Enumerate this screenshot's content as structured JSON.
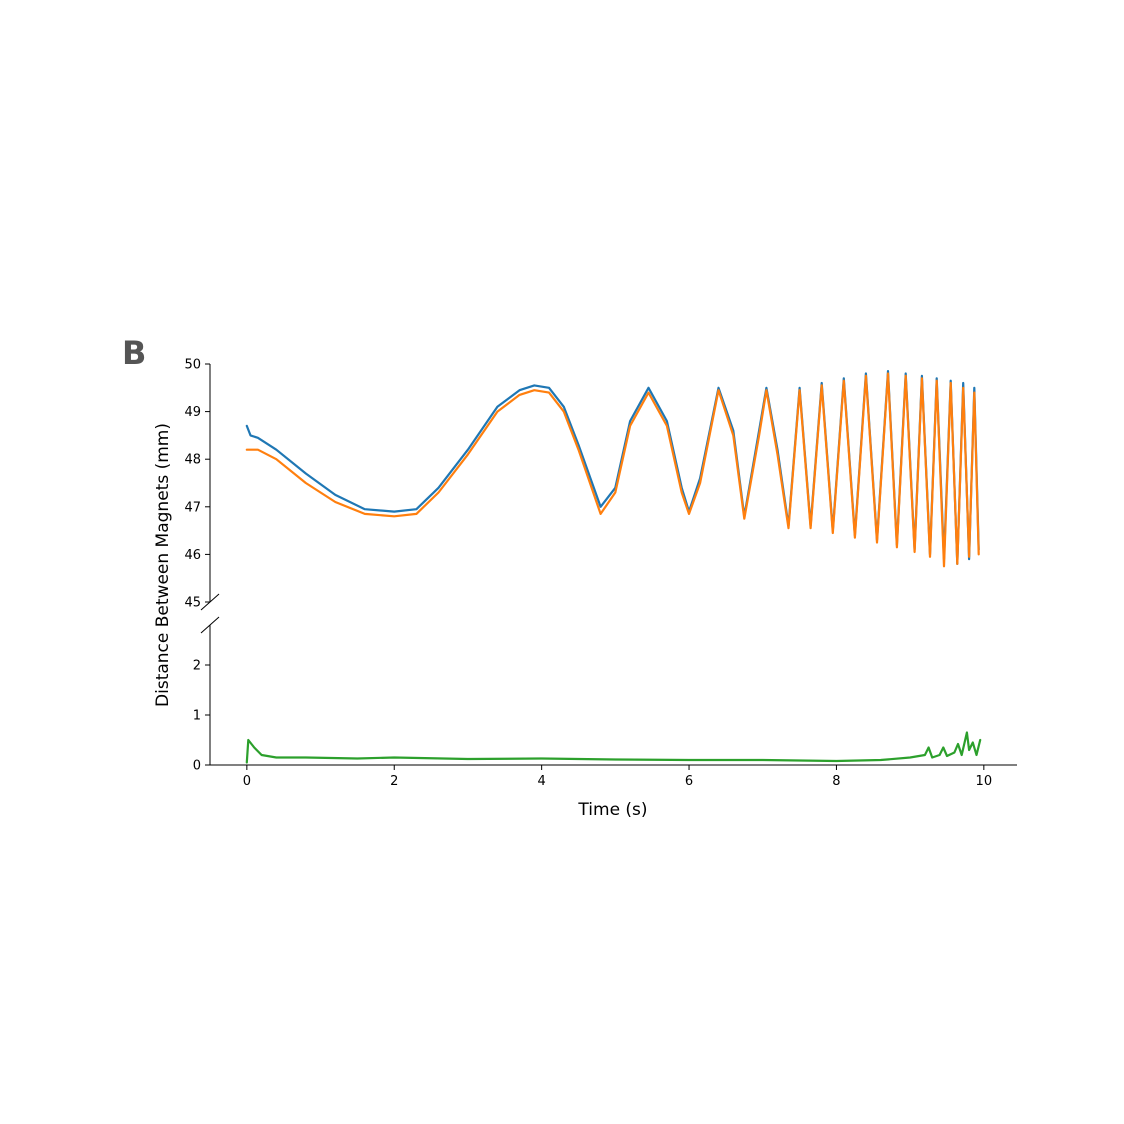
{
  "panel_label": "B",
  "chart_data": {
    "type": "line",
    "title": "",
    "xlabel": "Time (s)",
    "ylabel": "Distance Between Magnets (mm)",
    "xlim": [
      -0.5,
      10.45
    ],
    "x_ticks": [
      0,
      2,
      4,
      6,
      8,
      10
    ],
    "broken_y_axis": true,
    "upper_axis": {
      "ylim": [
        45,
        50
      ],
      "y_ticks": [
        45,
        46,
        47,
        48,
        49,
        50
      ]
    },
    "lower_axis": {
      "ylim": [
        0,
        2.8
      ],
      "y_ticks": [
        0,
        1,
        2
      ]
    },
    "grid": false,
    "legend": "none",
    "series": [
      {
        "color": "#1f77b4",
        "panel": "upper",
        "x": [
          0,
          0.05,
          0.15,
          0.4,
          0.8,
          1.2,
          1.6,
          2.0,
          2.3,
          2.6,
          3.0,
          3.4,
          3.7,
          3.9,
          4.1,
          4.3,
          4.5,
          4.8,
          5.0,
          5.2,
          5.45,
          5.7,
          5.9,
          6.0,
          6.15,
          6.4,
          6.6,
          6.75,
          6.95,
          7.05,
          7.2,
          7.35,
          7.5,
          7.65,
          7.8,
          7.95,
          8.1,
          8.25,
          8.4,
          8.55,
          8.7,
          8.82,
          8.94,
          9.06,
          9.16,
          9.27,
          9.36,
          9.46,
          9.55,
          9.64,
          9.72,
          9.8,
          9.87,
          9.93
        ],
        "values": [
          48.7,
          48.5,
          48.45,
          48.2,
          47.7,
          47.25,
          46.95,
          46.9,
          46.95,
          47.4,
          48.2,
          49.1,
          49.45,
          49.55,
          49.5,
          49.1,
          48.3,
          47.0,
          47.4,
          48.8,
          49.5,
          48.8,
          47.4,
          46.9,
          47.6,
          49.5,
          48.6,
          46.8,
          48.6,
          49.5,
          48.2,
          46.6,
          49.5,
          46.6,
          49.6,
          46.5,
          49.7,
          46.4,
          49.8,
          46.3,
          49.85,
          46.2,
          49.8,
          46.1,
          49.75,
          46.0,
          49.7,
          45.9,
          49.65,
          45.8,
          49.6,
          45.9,
          49.5,
          46.1
        ]
      },
      {
        "color": "#ff7f0e",
        "panel": "upper",
        "x": [
          0,
          0.05,
          0.15,
          0.4,
          0.8,
          1.2,
          1.6,
          2.0,
          2.3,
          2.6,
          3.0,
          3.4,
          3.7,
          3.9,
          4.1,
          4.3,
          4.5,
          4.8,
          5.0,
          5.2,
          5.45,
          5.7,
          5.9,
          6.0,
          6.15,
          6.4,
          6.6,
          6.75,
          6.95,
          7.05,
          7.2,
          7.35,
          7.5,
          7.65,
          7.8,
          7.95,
          8.1,
          8.25,
          8.4,
          8.55,
          8.7,
          8.82,
          8.94,
          9.06,
          9.16,
          9.27,
          9.36,
          9.46,
          9.55,
          9.64,
          9.72,
          9.8,
          9.87,
          9.93
        ],
        "values": [
          48.2,
          48.2,
          48.2,
          48.0,
          47.5,
          47.1,
          46.85,
          46.8,
          46.85,
          47.3,
          48.1,
          49.0,
          49.35,
          49.45,
          49.4,
          49.0,
          48.2,
          46.85,
          47.3,
          48.7,
          49.4,
          48.7,
          47.3,
          46.85,
          47.5,
          49.45,
          48.5,
          46.75,
          48.5,
          49.45,
          48.1,
          46.55,
          49.45,
          46.55,
          49.55,
          46.45,
          49.65,
          46.35,
          49.75,
          46.25,
          49.8,
          46.15,
          49.75,
          46.05,
          49.7,
          45.95,
          49.65,
          45.75,
          49.6,
          45.8,
          49.5,
          45.95,
          49.4,
          46.0
        ]
      },
      {
        "color": "#2ca02c",
        "panel": "lower",
        "x": [
          0,
          0.02,
          0.1,
          0.2,
          0.4,
          0.8,
          1.5,
          2.0,
          3.0,
          4.0,
          5.0,
          6.0,
          7.0,
          8.0,
          8.6,
          9.0,
          9.2,
          9.25,
          9.3,
          9.4,
          9.45,
          9.5,
          9.6,
          9.65,
          9.7,
          9.77,
          9.8,
          9.85,
          9.9,
          9.95
        ],
        "values": [
          0.05,
          0.5,
          0.35,
          0.2,
          0.15,
          0.15,
          0.13,
          0.15,
          0.12,
          0.13,
          0.11,
          0.1,
          0.1,
          0.08,
          0.1,
          0.15,
          0.2,
          0.35,
          0.15,
          0.2,
          0.35,
          0.18,
          0.25,
          0.42,
          0.2,
          0.65,
          0.3,
          0.45,
          0.2,
          0.5
        ]
      }
    ]
  }
}
